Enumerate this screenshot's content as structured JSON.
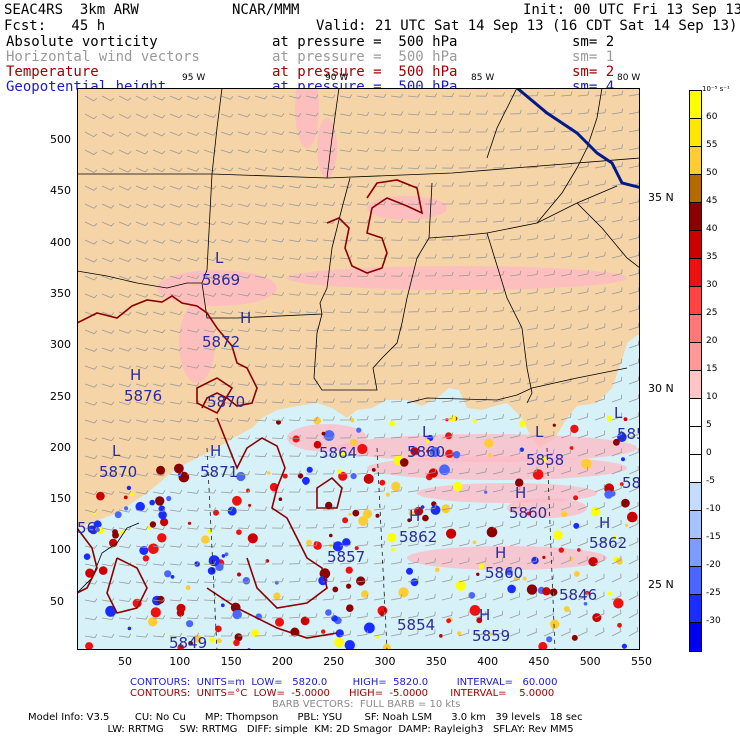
{
  "header": {
    "model": "SEAC4RS  3km ARW",
    "org": "NCAR/MMM",
    "init": "Init: 00 UTC Fri 13 Sep 13",
    "fcst": "Fcst:   45 h",
    "valid": "Valid: 21 UTC Sat 14 Sep 13 (16 CDT Sat 14 Sep 13)"
  },
  "fields": [
    {
      "name": "Absolute vorticity",
      "level": "at pressure =  500 hPa",
      "sm": "sm= 2",
      "color": "#000000"
    },
    {
      "name": "Horizontal wind vectors",
      "level": "at pressure =  500 hPa",
      "sm": "sm= 1",
      "color": "#9a9a9a"
    },
    {
      "name": "Temperature",
      "level": "at pressure =  500 hPa",
      "sm": "sm= 2",
      "color": "#a00000"
    },
    {
      "name": "Geopotential height",
      "level": "at pressure =  500 hPa",
      "sm": "sm= 4",
      "color": "#1a1ad0"
    }
  ],
  "map": {
    "land_color": "#f5d4a8",
    "water_color": "#d6f1f8",
    "lat_labels": [
      "35 N",
      "30 N",
      "25 N"
    ],
    "lon_labels": [
      "95 W",
      "90 W",
      "85 W",
      "80 W"
    ],
    "x_ticks": [
      "50",
      "100",
      "150",
      "200",
      "250",
      "300",
      "350",
      "400",
      "450",
      "500",
      "550"
    ],
    "y_ticks": [
      "500",
      "450",
      "400",
      "350",
      "300",
      "250",
      "200",
      "150",
      "100",
      "50"
    ],
    "height_labels": [
      {
        "text": "L"
      },
      {
        "text": "5869"
      },
      {
        "text": "H"
      },
      {
        "text": "5872"
      },
      {
        "text": "H"
      },
      {
        "text": "5876"
      },
      {
        "text": "5870"
      },
      {
        "text": "L"
      },
      {
        "text": "5870"
      },
      {
        "text": "H"
      },
      {
        "text": "5871"
      },
      {
        "text": "5864"
      },
      {
        "text": "L"
      },
      {
        "text": "5860"
      },
      {
        "text": "L"
      },
      {
        "text": "5858"
      },
      {
        "text": "L"
      },
      {
        "text": "585"
      },
      {
        "text": "586"
      },
      {
        "text": "H"
      },
      {
        "text": "5860"
      },
      {
        "text": "H"
      },
      {
        "text": "5862"
      },
      {
        "text": "H"
      },
      {
        "text": "5862"
      },
      {
        "text": "5857"
      },
      {
        "text": "H"
      },
      {
        "text": "5860"
      },
      {
        "text": "5846"
      },
      {
        "text": "5854"
      },
      {
        "text": "H"
      },
      {
        "text": "5859"
      },
      {
        "text": "56"
      },
      {
        "text": "5849"
      }
    ]
  },
  "colorbar": {
    "unit": "10⁻⁵ s⁻¹",
    "levels": [
      {
        "label": "60",
        "color": "#ffff00"
      },
      {
        "label": "55",
        "color": "#ffe600"
      },
      {
        "label": "50",
        "color": "#ffcc33"
      },
      {
        "label": "45",
        "color": "#b36b00"
      },
      {
        "label": "40",
        "color": "#8b0000"
      },
      {
        "label": "35",
        "color": "#cc0000"
      },
      {
        "label": "30",
        "color": "#ee1111"
      },
      {
        "label": "25",
        "color": "#ff4444"
      },
      {
        "label": "20",
        "color": "#ff7777"
      },
      {
        "label": "15",
        "color": "#ff9999"
      },
      {
        "label": "10",
        "color": "#ffc4c4"
      },
      {
        "label": "5",
        "color": "#ffffff"
      },
      {
        "label": "0",
        "color": "#ffffff"
      },
      {
        "label": "-5",
        "color": "#ffffff"
      },
      {
        "label": "-10",
        "color": "#c4dcff"
      },
      {
        "label": "-15",
        "color": "#a6c2ff"
      },
      {
        "label": "-20",
        "color": "#7e9cff"
      },
      {
        "label": "-25",
        "color": "#4a66ff"
      },
      {
        "label": "-30",
        "color": "#1a2dff"
      },
      {
        "label": "",
        "color": "#0000ee"
      }
    ]
  },
  "footer": {
    "contours_height": "CONTOURS:  UNITS=m  LOW=   5820.0        HIGH=  5820.0         INTERVAL=   60.000",
    "contours_temp": "CONTOURS:  UNITS=°C  LOW=  -5.0000      HIGH=  -5.0000       INTERVAL=    5.0000",
    "barbs": "BARB VECTORS:  FULL BARB = 10 kts",
    "model_info_1": "Model Info: V3.5        CU: No Cu      MP: Thompson      PBL: YSU       SF: Noah LSM      3.0 km   39 levels   18 sec",
    "model_info_2": "                         LW: RRTMG     SW: RRTMG   DIFF: simple  KM: 2D Smagor  DAMP: Rayleigh3   SFLAY: Rev MM5"
  }
}
